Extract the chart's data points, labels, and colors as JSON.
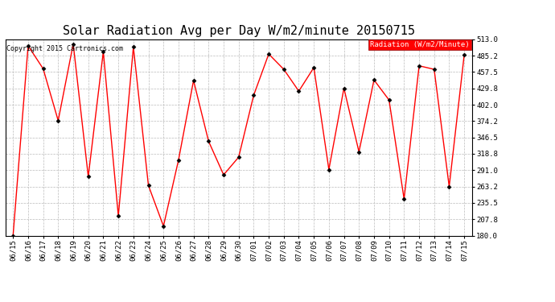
{
  "title": "Solar Radiation Avg per Day W/m2/minute 20150715",
  "copyright": "Copyright 2015 Cartronics.com",
  "legend_label": "Radiation (W/m2/Minute)",
  "dates": [
    "06/15",
    "06/16",
    "06/17",
    "06/18",
    "06/19",
    "06/20",
    "06/21",
    "06/22",
    "06/23",
    "06/24",
    "06/25",
    "06/26",
    "06/27",
    "06/28",
    "06/29",
    "06/30",
    "07/01",
    "07/02",
    "07/03",
    "07/04",
    "07/05",
    "07/06",
    "07/07",
    "07/08",
    "07/09",
    "07/10",
    "07/11",
    "07/12",
    "07/13",
    "07/14",
    "07/15"
  ],
  "values": [
    180.0,
    502.0,
    463.0,
    375.0,
    505.0,
    280.0,
    492.0,
    213.0,
    500.0,
    265.0,
    196.0,
    308.0,
    443.0,
    340.0,
    283.0,
    313.0,
    418.0,
    488.0,
    462.0,
    425.0,
    465.0,
    292.0,
    430.0,
    322.0,
    444.0,
    410.0,
    242.0,
    468.0,
    462.0,
    263.0,
    487.0
  ],
  "ylim": [
    180.0,
    513.0
  ],
  "yticks": [
    180.0,
    207.8,
    235.5,
    263.2,
    291.0,
    318.8,
    346.5,
    374.2,
    402.0,
    429.8,
    457.5,
    485.2,
    513.0
  ],
  "line_color": "red",
  "marker_color": "black",
  "bg_color": "#ffffff",
  "grid_color": "#bbbbbb",
  "title_fontsize": 11,
  "tick_fontsize": 6.5,
  "copyright_fontsize": 6.0,
  "legend_fontsize": 6.5,
  "legend_bg": "red",
  "legend_fg": "white"
}
